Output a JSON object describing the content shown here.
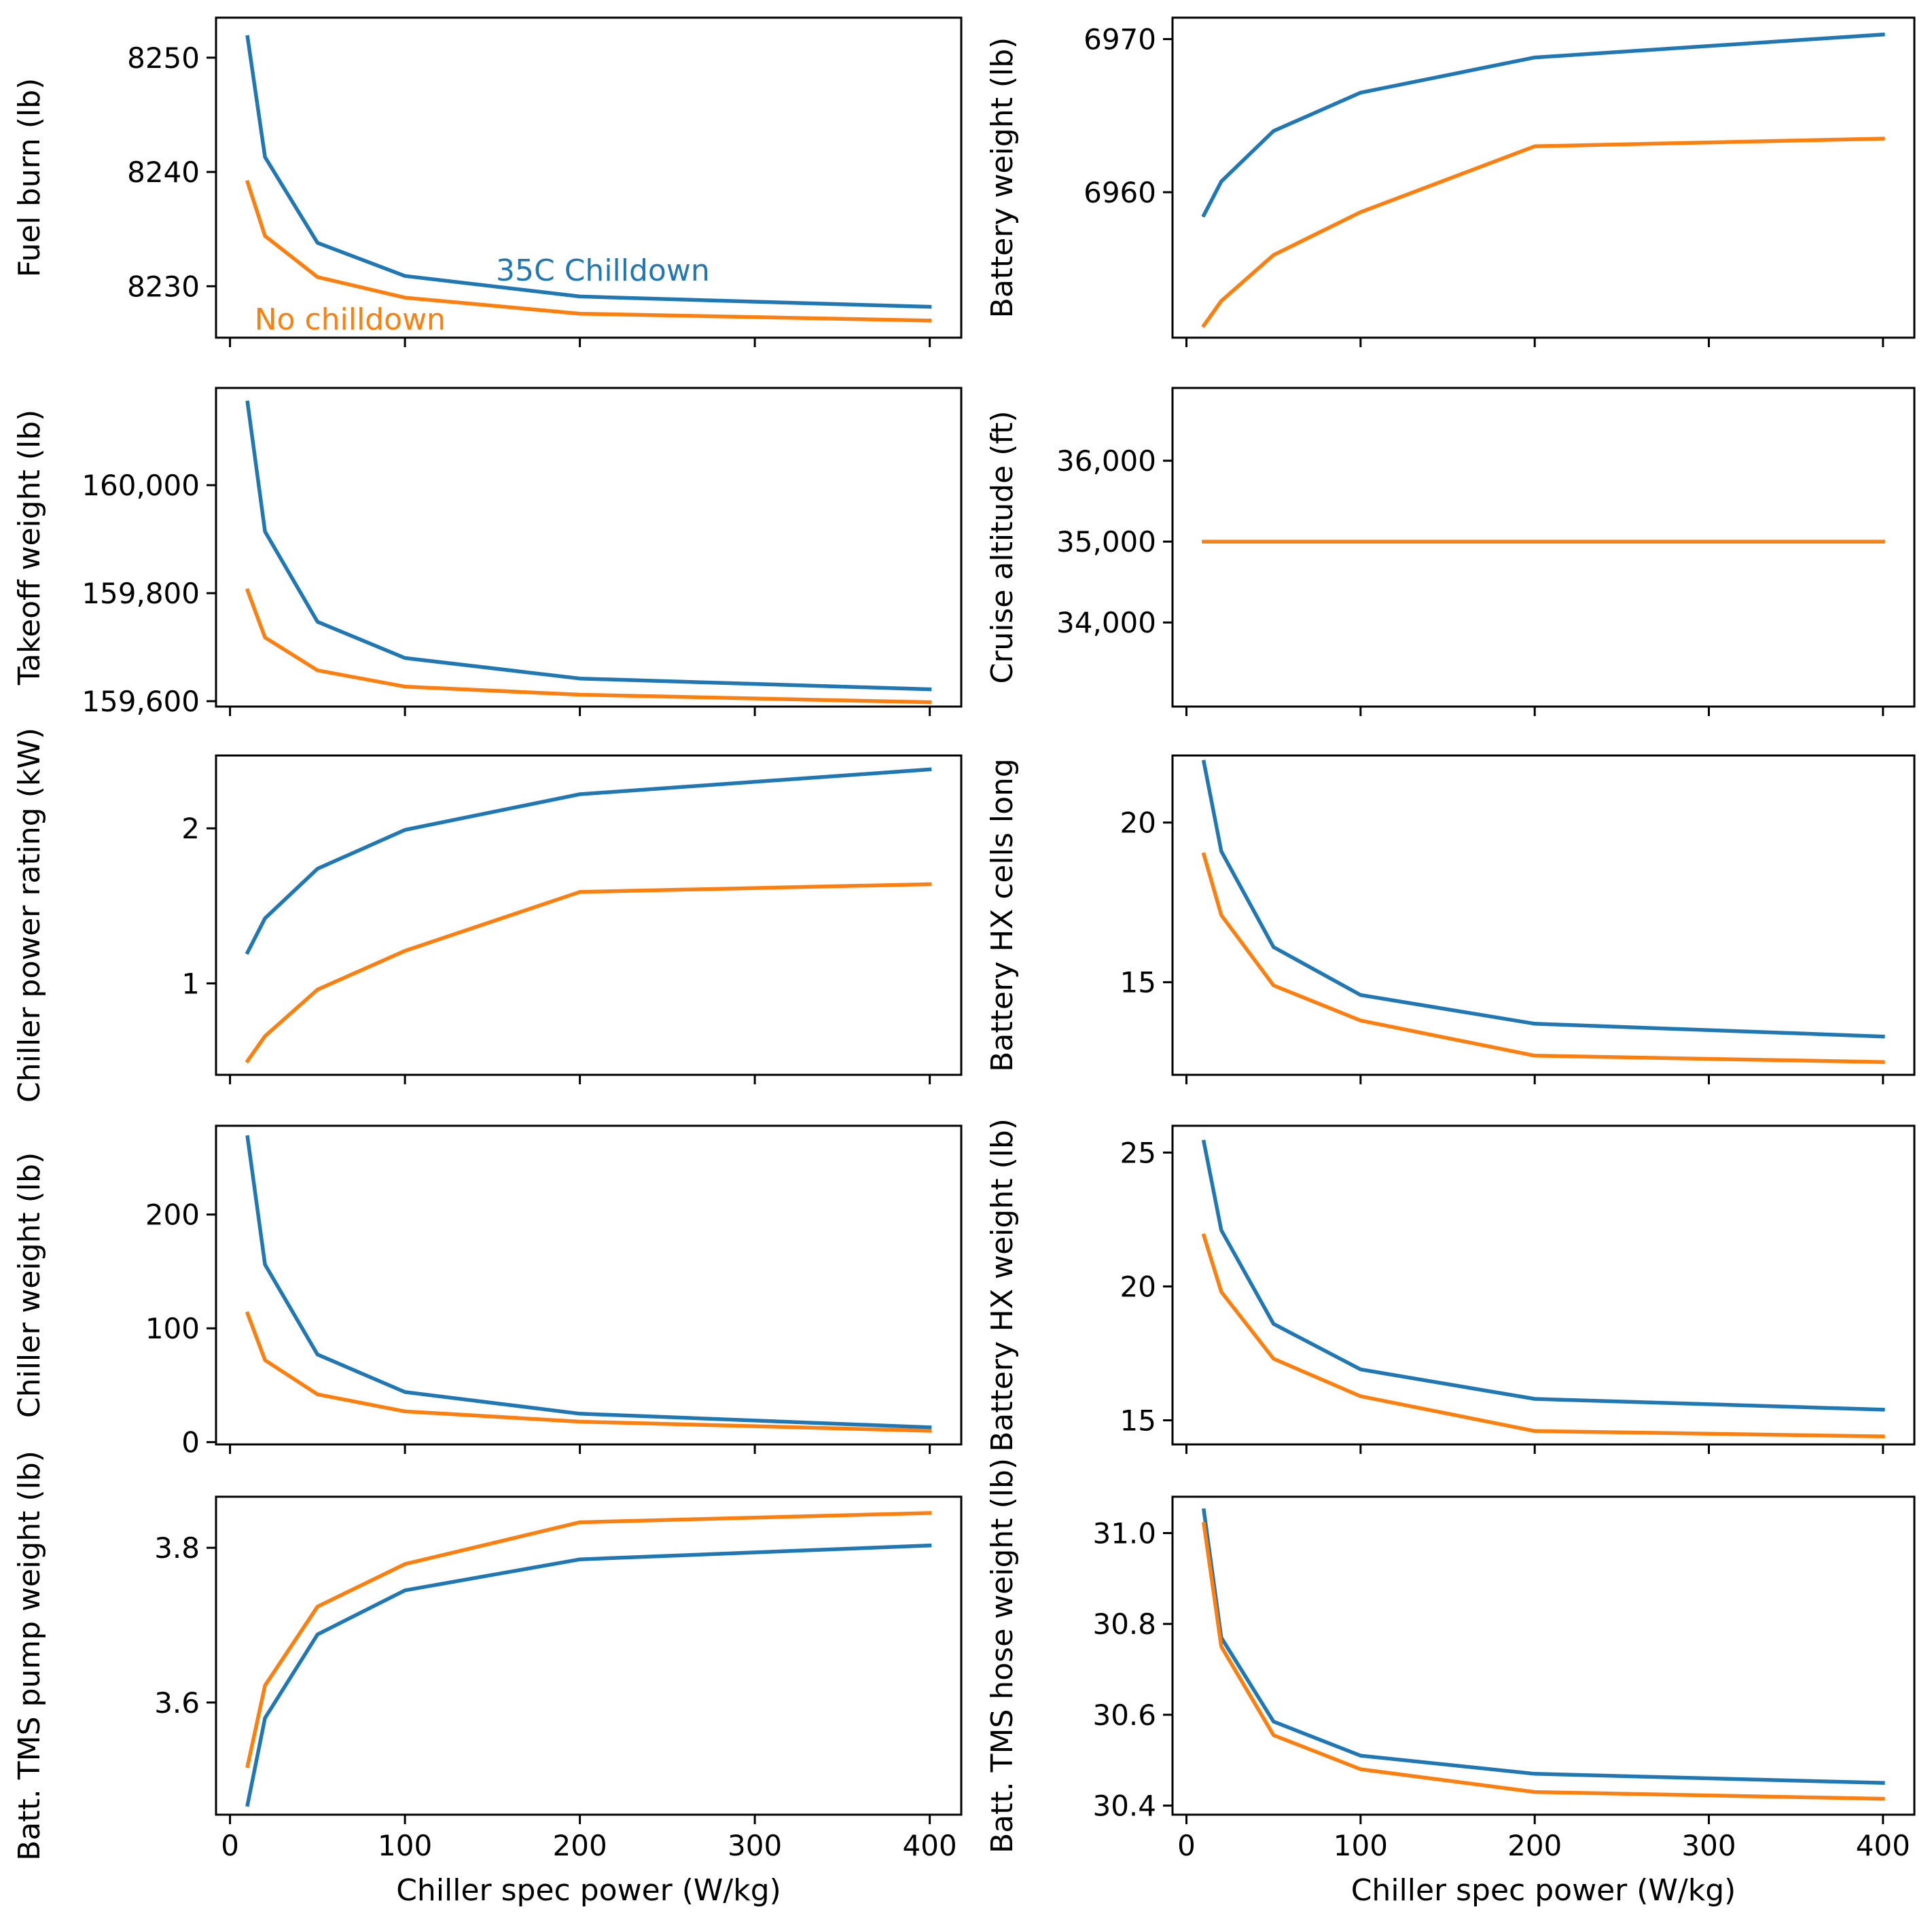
{
  "colors": {
    "childown": "#1f77b4",
    "nochilldown": "#ff7f0e"
  },
  "chart_data": [
    {
      "type": "line",
      "ylabel": "Fuel burn (lb)",
      "xlabel": "",
      "x": [
        10,
        20,
        50,
        100,
        200,
        400
      ],
      "xlim": [
        -8,
        418
      ],
      "ylim": [
        8225.5,
        8253.5
      ],
      "xticks": [
        0,
        100,
        200,
        300,
        400
      ],
      "xticklabels": [
        "",
        "",
        "",
        "",
        ""
      ],
      "yticks": [
        8230,
        8240,
        8250
      ],
      "yticklabels": [
        "8230",
        "8240",
        "8250"
      ],
      "series": [
        {
          "name": "35C Childown",
          "values": [
            8251.8,
            8241.3,
            8233.8,
            8230.9,
            8229.1,
            8228.2
          ]
        },
        {
          "name": "No childown",
          "values": [
            8239.1,
            8234.4,
            8230.8,
            8229.0,
            8227.6,
            8227.0
          ]
        }
      ],
      "annotations": [
        {
          "text": "35C Chilldown",
          "series": 0,
          "x": 152,
          "y": 8230.5
        },
        {
          "text": "No chilldown",
          "series": 1,
          "x": 14,
          "y": 8226.2
        }
      ]
    },
    {
      "type": "line",
      "ylabel": "Battery weight (lb)",
      "xlabel": "",
      "x": [
        10,
        20,
        50,
        100,
        200,
        400
      ],
      "xlim": [
        -8,
        418
      ],
      "ylim": [
        6950.5,
        6971.4
      ],
      "xticks": [
        0,
        100,
        200,
        300,
        400
      ],
      "xticklabels": [
        "",
        "",
        "",
        "",
        ""
      ],
      "yticks": [
        6960,
        6970
      ],
      "yticklabels": [
        "6960",
        "6970"
      ],
      "series": [
        {
          "name": "35C Childown",
          "values": [
            6958.5,
            6960.7,
            6964.0,
            6966.5,
            6968.8,
            6970.3
          ]
        },
        {
          "name": "No childown",
          "values": [
            6951.3,
            6952.9,
            6955.9,
            6958.7,
            6963.0,
            6963.5
          ]
        }
      ]
    },
    {
      "type": "line",
      "ylabel": "Takeoff weight (lb)",
      "xlabel": "",
      "x": [
        10,
        20,
        50,
        100,
        200,
        400
      ],
      "xlim": [
        -8,
        418
      ],
      "ylim": [
        159590,
        160180
      ],
      "xticks": [
        0,
        100,
        200,
        300,
        400
      ],
      "xticklabels": [
        "",
        "",
        "",
        "",
        ""
      ],
      "yticks": [
        159600,
        159800,
        160000
      ],
      "yticklabels": [
        "159,600",
        "159,800",
        "160,000"
      ],
      "series": [
        {
          "name": "35C Childown",
          "values": [
            160153,
            159914,
            159747,
            159680,
            159642,
            159622
          ]
        },
        {
          "name": "No childown",
          "values": [
            159805,
            159718,
            159657,
            159627,
            159612,
            159598
          ]
        }
      ]
    },
    {
      "type": "line",
      "ylabel": "Cruise altitude (ft)",
      "xlabel": "",
      "x": [
        10,
        20,
        50,
        100,
        200,
        400
      ],
      "xlim": [
        -8,
        418
      ],
      "ylim": [
        32960,
        36900
      ],
      "xticks": [
        0,
        100,
        200,
        300,
        400
      ],
      "xticklabels": [
        "",
        "",
        "",
        "",
        ""
      ],
      "yticks": [
        34000,
        35000,
        36000
      ],
      "yticklabels": [
        "34,000",
        "35,000",
        "36,000"
      ],
      "series": [
        {
          "name": "35C Childown",
          "values": [
            35000,
            35000,
            35000,
            35000,
            35000,
            35000
          ]
        },
        {
          "name": "No childown",
          "values": [
            35000,
            35000,
            35000,
            35000,
            35000,
            35000
          ]
        }
      ]
    },
    {
      "type": "line",
      "ylabel": "Chiller power rating (kW)",
      "xlabel": "",
      "x": [
        10,
        20,
        50,
        100,
        200,
        400
      ],
      "xlim": [
        -8,
        418
      ],
      "ylim": [
        0.41,
        2.47
      ],
      "xticks": [
        0,
        100,
        200,
        300,
        400
      ],
      "xticklabels": [
        "",
        "",
        "",
        "",
        ""
      ],
      "yticks": [
        1,
        2
      ],
      "yticklabels": [
        "1",
        "2"
      ],
      "series": [
        {
          "name": "35C Childown",
          "values": [
            1.2,
            1.42,
            1.74,
            1.99,
            2.22,
            2.38
          ]
        },
        {
          "name": "No childown",
          "values": [
            0.5,
            0.66,
            0.96,
            1.21,
            1.59,
            1.64
          ]
        }
      ]
    },
    {
      "type": "line",
      "ylabel": "Battery HX cells long",
      "xlabel": "",
      "x": [
        10,
        20,
        50,
        100,
        200,
        400
      ],
      "xlim": [
        -8,
        418
      ],
      "ylim": [
        12.1,
        22.1
      ],
      "xticks": [
        0,
        100,
        200,
        300,
        400
      ],
      "xticklabels": [
        "",
        "",
        "",
        "",
        ""
      ],
      "yticks": [
        15,
        20
      ],
      "yticklabels": [
        "15",
        "20"
      ],
      "series": [
        {
          "name": "35C Childown",
          "values": [
            21.9,
            19.1,
            16.1,
            14.6,
            13.7,
            13.3
          ]
        },
        {
          "name": "No childown",
          "values": [
            19.0,
            17.1,
            14.9,
            13.8,
            12.7,
            12.5
          ]
        }
      ]
    },
    {
      "type": "line",
      "ylabel": "Chiller weight (lb)",
      "xlabel": "",
      "x": [
        10,
        20,
        50,
        100,
        200,
        400
      ],
      "xlim": [
        -8,
        418
      ],
      "ylim": [
        -2,
        278
      ],
      "xticks": [
        0,
        100,
        200,
        300,
        400
      ],
      "xticklabels": [
        "",
        "",
        "",
        "",
        ""
      ],
      "yticks": [
        0,
        100,
        200
      ],
      "yticklabels": [
        "0",
        "100",
        "200"
      ],
      "series": [
        {
          "name": "35C Childown",
          "values": [
            268,
            156,
            77,
            44,
            25,
            13
          ]
        },
        {
          "name": "No childown",
          "values": [
            113,
            72,
            42,
            27,
            18,
            10
          ]
        }
      ]
    },
    {
      "type": "line",
      "ylabel": "Battery HX weight (lb)",
      "xlabel": "",
      "x": [
        10,
        20,
        50,
        100,
        200,
        400
      ],
      "xlim": [
        -8,
        418
      ],
      "ylim": [
        14.1,
        26.0
      ],
      "xticks": [
        0,
        100,
        200,
        300,
        400
      ],
      "xticklabels": [
        "",
        "",
        "",
        "",
        ""
      ],
      "yticks": [
        15,
        20,
        25
      ],
      "yticklabels": [
        "15",
        "20",
        "25"
      ],
      "series": [
        {
          "name": "35C Childown",
          "values": [
            25.4,
            22.1,
            18.6,
            16.9,
            15.8,
            15.4
          ]
        },
        {
          "name": "No childown",
          "values": [
            21.9,
            19.8,
            17.3,
            15.9,
            14.6,
            14.4
          ]
        }
      ]
    },
    {
      "type": "line",
      "ylabel": "Batt. TMS pump weight (lb)",
      "xlabel": "Chiller spec power (W/kg)",
      "x": [
        10,
        20,
        50,
        100,
        200,
        400
      ],
      "xlim": [
        -8,
        418
      ],
      "ylim": [
        3.455,
        3.866
      ],
      "xticks": [
        0,
        100,
        200,
        300,
        400
      ],
      "xticklabels": [
        "0",
        "100",
        "200",
        "300",
        "400"
      ],
      "yticks": [
        3.6,
        3.8
      ],
      "yticklabels": [
        "3.6",
        "3.8"
      ],
      "series": [
        {
          "name": "35C Childown",
          "values": [
            3.468,
            3.58,
            3.688,
            3.745,
            3.785,
            3.803
          ]
        },
        {
          "name": "No childown",
          "values": [
            3.518,
            3.622,
            3.724,
            3.779,
            3.833,
            3.845
          ]
        }
      ]
    },
    {
      "type": "line",
      "ylabel": "Batt. TMS hose weight (lb)",
      "xlabel": "Chiller spec power (W/kg)",
      "x": [
        10,
        20,
        50,
        100,
        200,
        400
      ],
      "xlim": [
        -8,
        418
      ],
      "ylim": [
        30.38,
        31.08
      ],
      "xticks": [
        0,
        100,
        200,
        300,
        400
      ],
      "xticklabels": [
        "0",
        "100",
        "200",
        "300",
        "400"
      ],
      "yticks": [
        30.4,
        30.6,
        30.8,
        31.0
      ],
      "yticklabels": [
        "30.4",
        "30.6",
        "30.8",
        "31.0"
      ],
      "series": [
        {
          "name": "35C Childown",
          "values": [
            31.05,
            30.77,
            30.585,
            30.51,
            30.47,
            30.45
          ]
        },
        {
          "name": "No childown",
          "values": [
            31.02,
            30.75,
            30.555,
            30.48,
            30.43,
            30.415
          ]
        }
      ]
    }
  ]
}
